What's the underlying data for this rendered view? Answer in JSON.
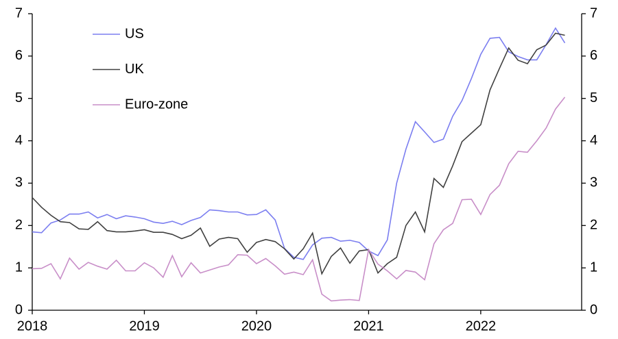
{
  "chart_data": {
    "type": "line",
    "x": [
      2018,
      2018.083,
      2018.167,
      2018.25,
      2018.333,
      2018.417,
      2018.5,
      2018.583,
      2018.667,
      2018.75,
      2018.833,
      2018.917,
      2019,
      2019.083,
      2019.167,
      2019.25,
      2019.333,
      2019.417,
      2019.5,
      2019.583,
      2019.667,
      2019.75,
      2019.833,
      2019.917,
      2020,
      2020.083,
      2020.167,
      2020.25,
      2020.333,
      2020.417,
      2020.5,
      2020.583,
      2020.667,
      2020.75,
      2020.833,
      2020.917,
      2021,
      2021.083,
      2021.167,
      2021.25,
      2021.333,
      2021.417,
      2021.5,
      2021.583,
      2021.667,
      2021.75,
      2021.833,
      2021.917,
      2022,
      2022.083,
      2022.167,
      2022.25,
      2022.333,
      2022.417,
      2022.5,
      2022.583,
      2022.667,
      2022.75
    ],
    "series": [
      {
        "name": "US",
        "color": "#7b7ef0",
        "values": [
          1.85,
          1.83,
          2.06,
          2.13,
          2.27,
          2.27,
          2.32,
          2.18,
          2.26,
          2.16,
          2.23,
          2.2,
          2.16,
          2.08,
          2.05,
          2.1,
          2.02,
          2.12,
          2.19,
          2.37,
          2.35,
          2.32,
          2.32,
          2.25,
          2.26,
          2.37,
          2.13,
          1.46,
          1.25,
          1.2,
          1.54,
          1.7,
          1.72,
          1.63,
          1.65,
          1.6,
          1.4,
          1.29,
          1.66,
          3.0,
          3.8,
          4.45,
          4.21,
          3.96,
          4.04,
          4.58,
          4.95,
          5.47,
          6.04,
          6.42,
          6.44,
          6.1,
          5.99,
          5.91,
          5.91,
          6.27,
          6.66,
          6.31
        ]
      },
      {
        "name": "UK",
        "color": "#404040",
        "values": [
          2.66,
          2.43,
          2.24,
          2.09,
          2.07,
          1.92,
          1.91,
          2.09,
          1.88,
          1.85,
          1.85,
          1.87,
          1.9,
          1.84,
          1.84,
          1.79,
          1.69,
          1.77,
          1.94,
          1.51,
          1.68,
          1.72,
          1.69,
          1.37,
          1.6,
          1.67,
          1.62,
          1.45,
          1.21,
          1.45,
          1.82,
          0.86,
          1.27,
          1.47,
          1.11,
          1.4,
          1.43,
          0.88,
          1.1,
          1.25,
          2.0,
          2.32,
          1.85,
          3.11,
          2.9,
          3.41,
          3.98,
          4.18,
          4.38,
          5.2,
          5.71,
          6.19,
          5.9,
          5.82,
          6.15,
          6.26,
          6.54,
          6.49
        ]
      },
      {
        "name": "Euro-zone",
        "color": "#c88ec8",
        "values": [
          0.98,
          0.99,
          1.1,
          0.74,
          1.23,
          0.97,
          1.13,
          1.04,
          0.97,
          1.18,
          0.93,
          0.93,
          1.12,
          1.0,
          0.78,
          1.29,
          0.79,
          1.12,
          0.88,
          0.95,
          1.02,
          1.07,
          1.31,
          1.3,
          1.1,
          1.22,
          1.05,
          0.85,
          0.9,
          0.84,
          1.19,
          0.38,
          0.22,
          0.24,
          0.25,
          0.23,
          1.43,
          1.09,
          0.93,
          0.74,
          0.94,
          0.9,
          0.72,
          1.57,
          1.9,
          2.05,
          2.61,
          2.62,
          2.26,
          2.73,
          2.95,
          3.46,
          3.75,
          3.73,
          4.0,
          4.3,
          4.75,
          5.03
        ]
      }
    ],
    "xlim": [
      2018,
      2022.9
    ],
    "xticks": [
      2018,
      2019,
      2020,
      2021,
      2022
    ],
    "ylim": [
      0,
      7
    ],
    "yticks": [
      0,
      1,
      2,
      3,
      4,
      5,
      6,
      7
    ],
    "y2lim": [
      0,
      7
    ],
    "y2ticks": [
      0,
      1,
      2,
      3,
      4,
      5,
      6,
      7
    ],
    "grid": false,
    "legend": "upper left"
  }
}
